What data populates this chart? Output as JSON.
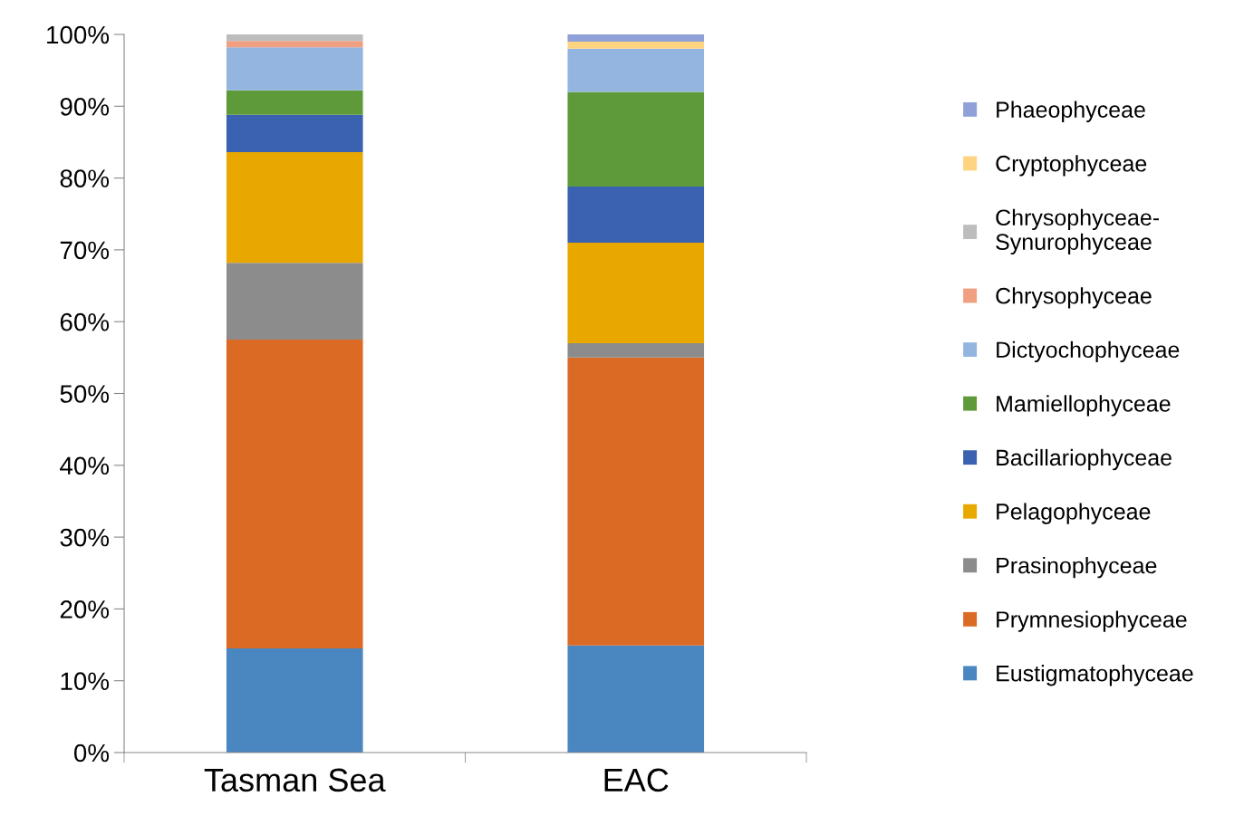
{
  "chart_data": {
    "type": "bar",
    "stacked": true,
    "categories": [
      "Tasman Sea",
      "EAC"
    ],
    "ylim": [
      0,
      100
    ],
    "yticks": [
      {
        "value": 0,
        "label": "0%"
      },
      {
        "value": 10,
        "label": "10%"
      },
      {
        "value": 20,
        "label": "20%"
      },
      {
        "value": 30,
        "label": "30%"
      },
      {
        "value": 40,
        "label": "40%"
      },
      {
        "value": 50,
        "label": "50%"
      },
      {
        "value": 60,
        "label": "60%"
      },
      {
        "value": 70,
        "label": "70%"
      },
      {
        "value": 80,
        "label": "80%"
      },
      {
        "value": 90,
        "label": "90%"
      },
      {
        "value": 100,
        "label": "100%"
      }
    ],
    "grid": false,
    "legend": "right",
    "series": [
      {
        "name": "Eustigmatophyceae",
        "color": "#4a86c0",
        "values": [
          14.5,
          14.9
        ]
      },
      {
        "name": "Prymnesiophyceae",
        "color": "#db6a25",
        "values": [
          43.0,
          40.1
        ]
      },
      {
        "name": "Prasinophyceae",
        "color": "#8c8c8c",
        "values": [
          10.7,
          2.0
        ]
      },
      {
        "name": "Pelagophyceae",
        "color": "#e8a800",
        "values": [
          15.4,
          14.0
        ]
      },
      {
        "name": "Bacillariophyceae",
        "color": "#3a62b0",
        "values": [
          5.2,
          7.8
        ]
      },
      {
        "name": "Mamiellophyceae",
        "color": "#5e9a3a",
        "values": [
          3.4,
          13.2
        ]
      },
      {
        "name": "Dictyochophyceae",
        "color": "#93b5e0",
        "values": [
          6.0,
          6.0
        ]
      },
      {
        "name": "Chrysophyceae",
        "color": "#f0a080",
        "values": [
          0.9,
          0
        ]
      },
      {
        "name": "Chrysophyceae-\nSynurophyceae",
        "color": "#bdbdbd",
        "values": [
          0.9,
          0
        ]
      },
      {
        "name": "Cryptophyceae",
        "color": "#ffd480",
        "values": [
          0,
          1.0
        ]
      },
      {
        "name": "Phaeophyceae",
        "color": "#8fa1d8",
        "values": [
          0,
          1.0
        ]
      }
    ]
  }
}
